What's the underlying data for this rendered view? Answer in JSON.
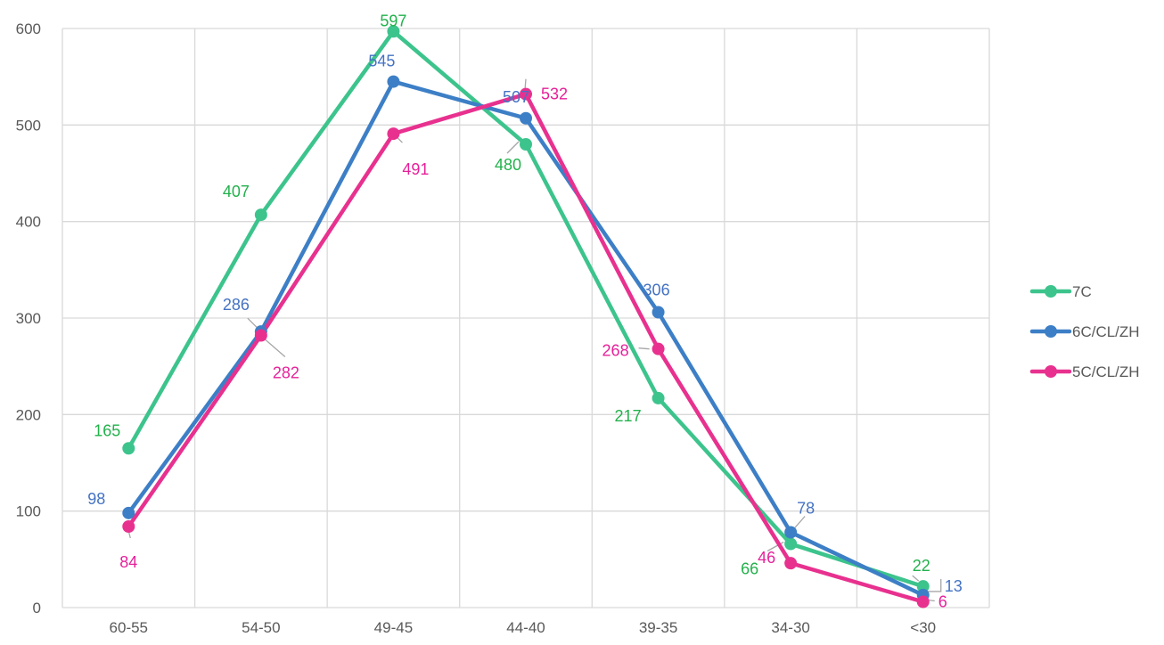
{
  "chart_data": {
    "type": "line",
    "title": "",
    "xlabel": "",
    "ylabel": "",
    "categories": [
      "60-55",
      "54-50",
      "49-45",
      "44-40",
      "39-35",
      "34-30",
      "<30"
    ],
    "ylim": [
      0,
      600
    ],
    "yticks": [
      0,
      100,
      200,
      300,
      400,
      500,
      600
    ],
    "grid": "on",
    "legend_position": "right",
    "series": [
      {
        "name": "7C",
        "color": "#3cc48c",
        "label_color": "#22b14c",
        "values": [
          165,
          407,
          597,
          480,
          217,
          66,
          22
        ]
      },
      {
        "name": "6C/CL/ZH",
        "color": "#3d7fc6",
        "label_color": "#4472c4",
        "values": [
          98,
          286,
          545,
          507,
          306,
          78,
          13
        ]
      },
      {
        "name": "5C/CL/ZH",
        "color": "#e8318f",
        "label_color": "#e6209a",
        "values": [
          84,
          282,
          491,
          532,
          268,
          46,
          6
        ]
      }
    ]
  }
}
